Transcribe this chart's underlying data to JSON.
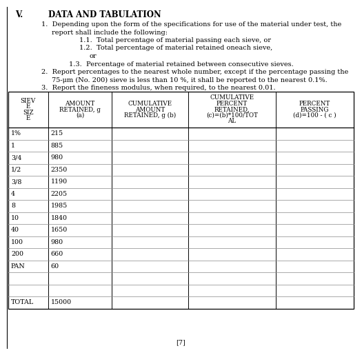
{
  "title_roman": "V.",
  "title_text": "DATA AND TABULATION",
  "sieve_sizes": [
    "1%",
    "1",
    "3/4",
    "1/2",
    "3/8",
    "4",
    "8",
    "10",
    "40",
    "100",
    "200",
    "PAN",
    "",
    "",
    "TOTAL"
  ],
  "amounts": [
    "215",
    "885",
    "980",
    "2350",
    "1190",
    "2205",
    "1985",
    "1840",
    "1650",
    "980",
    "660",
    "60",
    "",
    "",
    "15000"
  ],
  "col_headers_line1": [
    "SIEV",
    "AMOUNT",
    "CUMULATIVE",
    "CUMULATIVE",
    "PERCENT"
  ],
  "col_headers_line2": [
    "E",
    "RETAINED, g",
    "AMOUNT",
    "PERCENT",
    "PASSING"
  ],
  "col_headers_line3": [
    "SIZ",
    "(a)",
    "RETAINED, g (b)",
    "RETAINED,",
    "(d)=100 - ( c )"
  ],
  "col_headers_line4": [
    "E",
    "",
    "",
    "(c)=(b)*100/TOT",
    ""
  ],
  "col_headers_line5": [
    "",
    "",
    "",
    "AL",
    ""
  ],
  "col_props": [
    0.115,
    0.185,
    0.22,
    0.255,
    0.225
  ],
  "bg_color": "#ffffff",
  "text_color": "#000000",
  "footer_text": "[7]"
}
